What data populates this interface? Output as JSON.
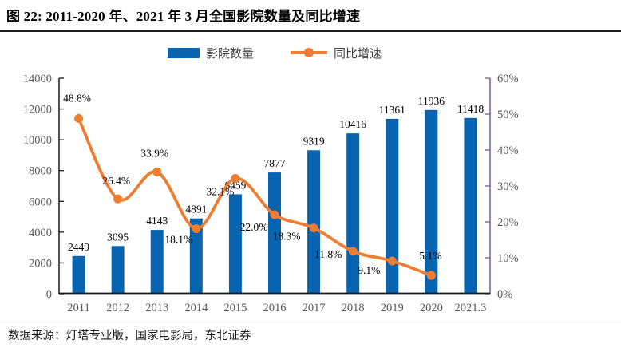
{
  "header": {
    "title": "图 22: 2011-2020 年、2021 年 3 月全国影院数量及同比增速"
  },
  "legend": {
    "bars_label": "影院数量",
    "line_label": "同比增速"
  },
  "footer": {
    "source": "数据来源：灯塔专业版，国家电影局，东北证券"
  },
  "colors": {
    "bar": "#0864b0",
    "line": "#ED7D31",
    "axis_text": "#595959",
    "data_label_text": "#000000",
    "left_axis_line": "#262626",
    "bottom_axis_line": "#1a1a1a",
    "right_axis_line": "#7e62a9"
  },
  "chart_data": {
    "type": "bar",
    "subtype": "bar+line combo, dual axis",
    "title": "图 22: 2011-2020 年、2021 年 3 月全国影院数量及同比增速",
    "categories": [
      "2011",
      "2012",
      "2013",
      "2014",
      "2015",
      "2016",
      "2017",
      "2018",
      "2019",
      "2020",
      "2021.3"
    ],
    "series": [
      {
        "name": "影院数量",
        "type": "bar",
        "axis": "left",
        "values": [
          2449,
          3095,
          4143,
          4891,
          6459,
          7877,
          9319,
          10416,
          11361,
          11936,
          11418
        ],
        "labels": [
          "2449",
          "3095",
          "4143",
          "4891",
          "6459",
          "7877",
          "9319",
          "10416",
          "11361",
          "11936",
          "11418"
        ]
      },
      {
        "name": "同比增速",
        "type": "line",
        "axis": "right",
        "smooth": true,
        "values": [
          48.8,
          26.4,
          33.9,
          18.1,
          32.1,
          22.0,
          18.3,
          11.8,
          9.1,
          5.1,
          null
        ],
        "labels": [
          "48.8%",
          "26.4%",
          "33.9%",
          "18.1%",
          "32.1%",
          "22.0%",
          "18.3%",
          "11.8%",
          "9.1%",
          "5.1%",
          null
        ]
      }
    ],
    "left_axis": {
      "min": 0,
      "max": 14000,
      "step": 2000,
      "ticks": [
        "0",
        "2000",
        "4000",
        "6000",
        "8000",
        "10000",
        "12000",
        "14000"
      ]
    },
    "right_axis": {
      "min": 0,
      "max": 60,
      "step": 10,
      "ticks": [
        "0%",
        "10%",
        "20%",
        "30%",
        "40%",
        "50%",
        "60%"
      ]
    },
    "grid": false,
    "legend_position": "top-center"
  }
}
